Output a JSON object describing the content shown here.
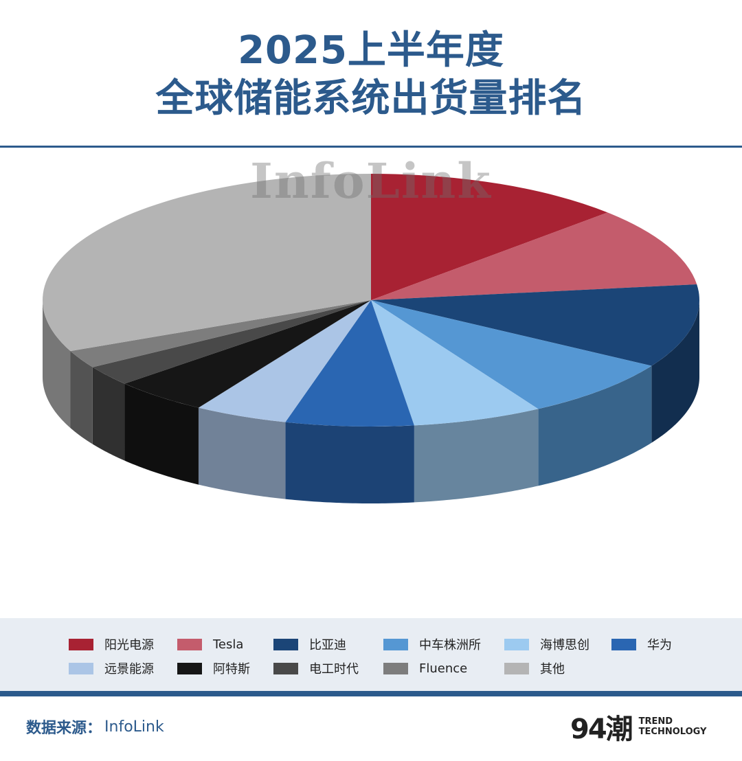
{
  "title": {
    "line1": "2025上半年度",
    "line2": "全球储能系统出货量排名"
  },
  "watermark": "InfoLink",
  "chart_data": {
    "type": "pie",
    "title": "2025上半年度 全球储能系统出货量排名",
    "categories": [
      "阳光电源",
      "Tesla",
      "比亚迪",
      "中车株洲所",
      "海博思创",
      "华为",
      "远景能源",
      "阿特斯",
      "电工时代",
      "Fluence",
      "其他"
    ],
    "values": [
      12.8,
      10.2,
      10.7,
      7.8,
      6.4,
      6.3,
      4.6,
      4.7,
      2.6,
      2.3,
      31.6
    ],
    "unit": "%",
    "colors": [
      "#a82233",
      "#c45c6c",
      "#1b4577",
      "#5597d3",
      "#9ccaf0",
      "#2a66b2",
      "#abc5e6",
      "#161616",
      "#494949",
      "#7d7d7d",
      "#b4b4b4"
    ],
    "start_angle": 0,
    "direction": "clockwise",
    "style": "3d",
    "legend_position": "bottom"
  },
  "footer": {
    "source_key": "数据来源：",
    "source_value": "InfoLink",
    "brand_mark": "94潮",
    "brand_line1": "TREND",
    "brand_line2": "TECHNOLOGY"
  }
}
